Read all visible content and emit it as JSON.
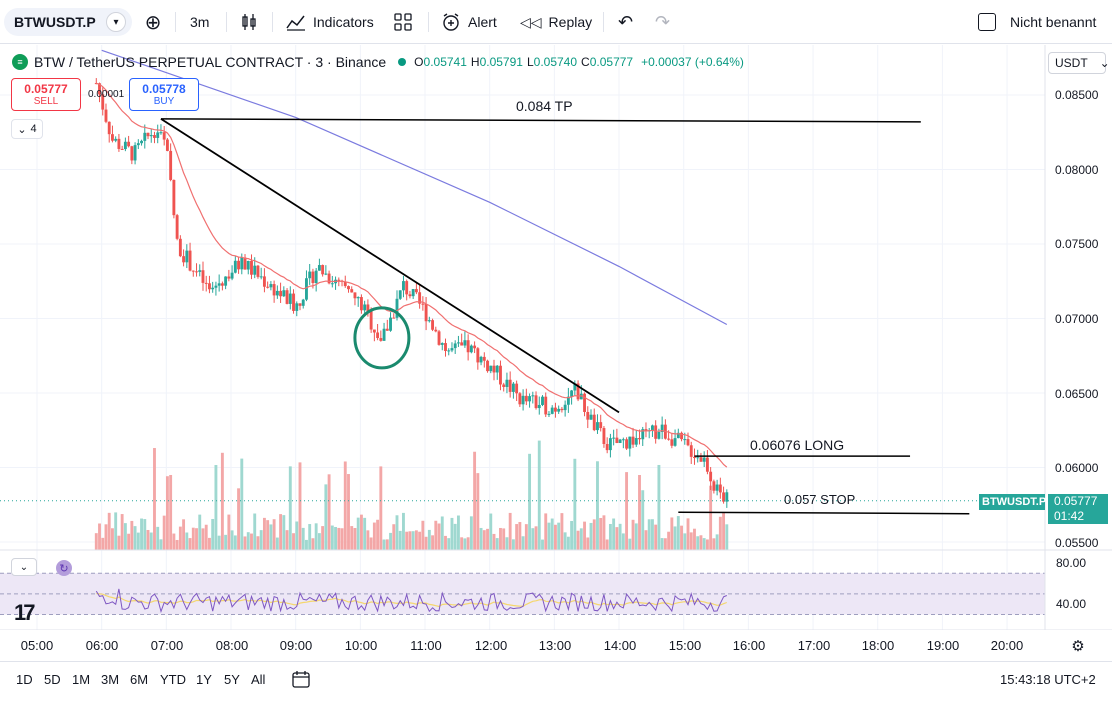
{
  "toolbar": {
    "symbol": "BTWUSDT.P",
    "interval": "3m",
    "indicators_label": "Indicators",
    "alert_label": "Alert",
    "replay_label": "Replay",
    "layout_name": "Nicht benannt"
  },
  "legend": {
    "title": "BTW / TetherUS PERPETUAL CONTRACT · 3 · Binance",
    "open_label": "O",
    "open": "0.05741",
    "high_label": "H",
    "high": "0.05791",
    "low_label": "L",
    "low": "0.05740",
    "close_label": "C",
    "close": "0.05777",
    "change": "+0.00037 (+0.64%)",
    "indicator_count": "4"
  },
  "trade": {
    "sell_price": "0.05777",
    "sell_label": "SELL",
    "buy_price": "0.05778",
    "buy_label": "BUY",
    "spread": "0.00001"
  },
  "price_axis": {
    "currency": "USDT",
    "labels": [
      "0.08500",
      "0.08000",
      "0.07500",
      "0.07000",
      "0.06500",
      "0.06000",
      "0.05500"
    ],
    "last_symbol": "BTWUSDT.P",
    "last_price": "0.05777",
    "countdown": "01:42"
  },
  "annotations": {
    "tp": "0.084 TP",
    "long": "0.06076 LONG",
    "stop": "0.057 STOP"
  },
  "rsi": {
    "labels": [
      "80.00",
      "40.00"
    ]
  },
  "time_axis": [
    "05:00",
    "06:00",
    "07:00",
    "08:00",
    "09:00",
    "10:00",
    "11:00",
    "12:00",
    "13:00",
    "14:00",
    "15:00",
    "16:00",
    "17:00",
    "18:00",
    "19:00",
    "20:00"
  ],
  "ranges": [
    "1D",
    "5D",
    "1M",
    "3M",
    "6M",
    "YTD",
    "1Y",
    "5Y",
    "All"
  ],
  "clock": "15:43:18 UTC+2",
  "colors": {
    "up": "#26a69a",
    "down": "#ef5350",
    "ema_fast": "#f07070",
    "ema_slow": "#7b7bdf",
    "rsi_line": "#7e57c2",
    "rsi_ma": "#f5d76e",
    "circle": "#1a8a6e"
  },
  "chart_data": {
    "type": "candlestick",
    "interval": "3m",
    "x_range": [
      "05:00",
      "20:00"
    ],
    "y_range": [
      0.0545,
      0.0875
    ],
    "close_path": [
      {
        "t": "05:55",
        "p": 0.0858
      },
      {
        "t": "06:10",
        "p": 0.082
      },
      {
        "t": "06:30",
        "p": 0.081
      },
      {
        "t": "06:50",
        "p": 0.0828
      },
      {
        "t": "07:00",
        "p": 0.0815
      },
      {
        "t": "07:10",
        "p": 0.075
      },
      {
        "t": "07:40",
        "p": 0.0718
      },
      {
        "t": "08:10",
        "p": 0.0738
      },
      {
        "t": "08:40",
        "p": 0.072
      },
      {
        "t": "09:00",
        "p": 0.0708
      },
      {
        "t": "09:20",
        "p": 0.0735
      },
      {
        "t": "09:40",
        "p": 0.0722
      },
      {
        "t": "10:00",
        "p": 0.071
      },
      {
        "t": "10:20",
        "p": 0.0685
      },
      {
        "t": "10:40",
        "p": 0.0722
      },
      {
        "t": "11:00",
        "p": 0.0705
      },
      {
        "t": "11:20",
        "p": 0.0678
      },
      {
        "t": "11:40",
        "p": 0.068
      },
      {
        "t": "12:00",
        "p": 0.0668
      },
      {
        "t": "12:30",
        "p": 0.0645
      },
      {
        "t": "13:00",
        "p": 0.064
      },
      {
        "t": "13:20",
        "p": 0.0652
      },
      {
        "t": "13:35",
        "p": 0.063
      },
      {
        "t": "13:50",
        "p": 0.0615
      },
      {
        "t": "14:20",
        "p": 0.062
      },
      {
        "t": "14:40",
        "p": 0.0625
      },
      {
        "t": "15:00",
        "p": 0.0615
      },
      {
        "t": "15:20",
        "p": 0.0605
      },
      {
        "t": "15:30",
        "p": 0.0585
      },
      {
        "t": "15:40",
        "p": 0.0578
      }
    ],
    "ema_slow": [
      {
        "t": "06:00",
        "p": 0.088
      },
      {
        "t": "09:00",
        "p": 0.0835
      },
      {
        "t": "12:00",
        "p": 0.0778
      },
      {
        "t": "14:00",
        "p": 0.0735
      },
      {
        "t": "15:40",
        "p": 0.0696
      }
    ],
    "trendline": [
      {
        "t": "06:55",
        "p": 0.0834
      },
      {
        "t": "14:00",
        "p": 0.0637
      }
    ],
    "horizontal_lines": [
      {
        "label": "0.084 TP",
        "from": "06:55",
        "to": "18:40",
        "p_start": 0.0834,
        "p_end": 0.0832
      },
      {
        "label": "0.06076 LONG",
        "from": "15:10",
        "to": "18:30",
        "p": 0.06076
      },
      {
        "label": "0.057 STOP",
        "from": "14:55",
        "to": "19:25",
        "p_start": 0.057,
        "p_end": 0.0569
      }
    ],
    "rsi_scale": [
      20,
      100
    ]
  }
}
